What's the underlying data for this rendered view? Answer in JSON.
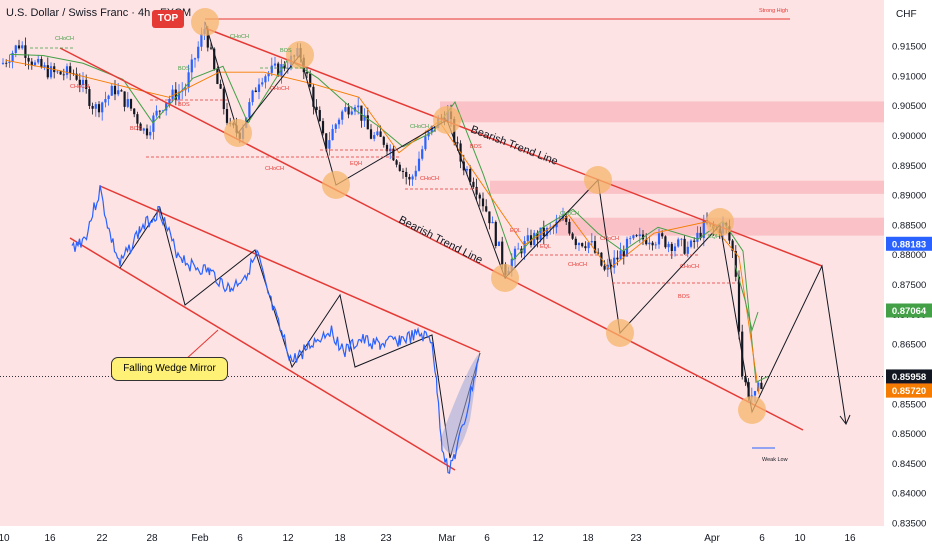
{
  "header": {
    "title": "U.S. Dollar / Swiss Franc · 4h · FXCM",
    "currency": "CHF"
  },
  "chart_data": {
    "type": "candlestick",
    "symbol": "USDCHF",
    "timeframe": "4h",
    "ylim": [
      0.835,
      0.919
    ],
    "y_ticks": [
      "0.91500",
      "0.91000",
      "0.90500",
      "0.90000",
      "0.89500",
      "0.89000",
      "0.88500",
      "0.88000",
      "0.87500",
      "0.87000",
      "0.86500",
      "0.86000",
      "0.85500",
      "0.85000",
      "0.84500",
      "0.84000",
      "0.83500"
    ],
    "x_ticks": [
      "10",
      "16",
      "22",
      "28",
      "Feb",
      "6",
      "12",
      "18",
      "23",
      "Mar",
      "6",
      "12",
      "18",
      "23",
      "Apr",
      "6",
      "10",
      "16"
    ],
    "current_price": 0.85958,
    "price_tags": [
      {
        "label": "0.88183",
        "value": 0.88183,
        "color": "#2962ff"
      },
      {
        "label": "0.87064",
        "value": 0.87064,
        "color": "#43a047"
      },
      {
        "label": "0.85958",
        "value": 0.85958,
        "color": "#131722"
      },
      {
        "label": "0.85958",
        "value": 0.85958,
        "color": "#e53935"
      },
      {
        "label": "0.85720",
        "value": 0.8572,
        "color": "#f57c00"
      }
    ],
    "annotations": {
      "top_badge": "TOP",
      "strong_high": "Strong High",
      "weak_low": "Weak Low",
      "trend_line_upper": "Bearish Trend Line",
      "trend_line_lower": "Bearish Trend Line",
      "wedge_label": "Falling Wedge Mirror",
      "smc_labels": [
        "CHoCH",
        "CHoCH",
        "BOS",
        "BOS",
        "EQH",
        "CHoCH",
        "CHoCH",
        "CHoCH",
        "BOS",
        "EQL",
        "CHoCH",
        "CHoCH",
        "EQL",
        "CHoCH",
        "CHoCH",
        "BOS",
        "BOS",
        "BOS",
        "CHoCH",
        "CHoCH",
        "EQH"
      ]
    },
    "supply_zones": [
      {
        "from": 0.9022,
        "to": 0.9057
      },
      {
        "from": 0.8902,
        "to": 0.8924
      },
      {
        "from": 0.8832,
        "to": 0.8862
      }
    ]
  }
}
